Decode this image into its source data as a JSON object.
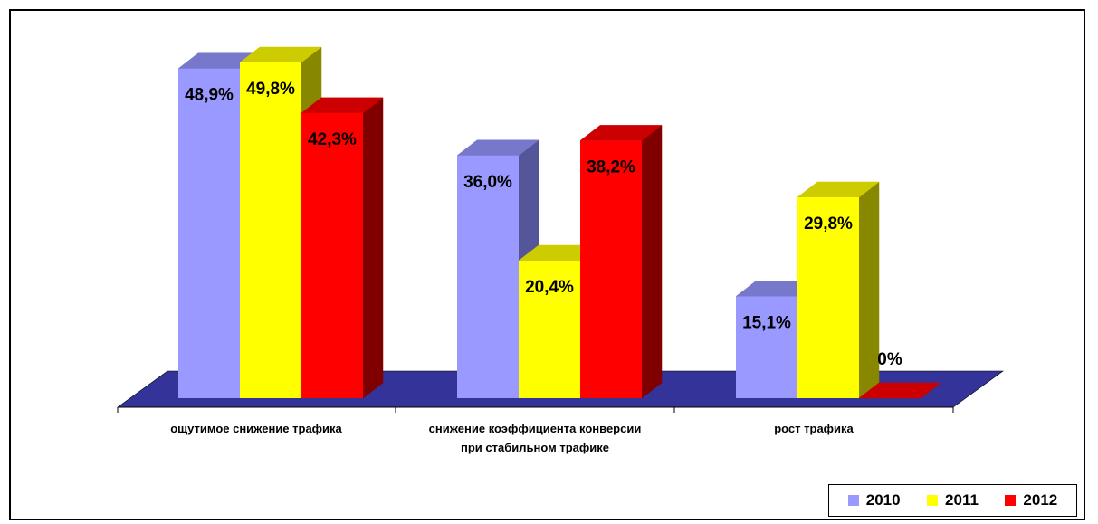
{
  "chart_data": {
    "type": "bar",
    "categories": [
      [
        "ощутимое снижение трафика"
      ],
      [
        "снижение коэффициента конверсии",
        "при стабильном трафике"
      ],
      [
        "рост трафика"
      ]
    ],
    "series": [
      {
        "name": "2010",
        "values": [
          48.9,
          36.0,
          15.1
        ],
        "labels": [
          "48,9%",
          "36,0%",
          "15,1%"
        ],
        "color": "#9999ff",
        "side": "#555599",
        "top": "#7777cc"
      },
      {
        "name": "2011",
        "values": [
          49.8,
          20.4,
          29.8
        ],
        "labels": [
          "49,8%",
          "20,4%",
          "29,8%"
        ],
        "color": "#ffff00",
        "side": "#888800",
        "top": "#cccc00"
      },
      {
        "name": "2012",
        "values": [
          42.3,
          38.2,
          0
        ],
        "labels": [
          "42,3%",
          "38,2%",
          "0%"
        ],
        "color": "#ff0000",
        "side": "#800000",
        "top": "#cc0000"
      }
    ],
    "floor_color": "#333399",
    "legend_position": "bottom-right",
    "grid": false
  }
}
